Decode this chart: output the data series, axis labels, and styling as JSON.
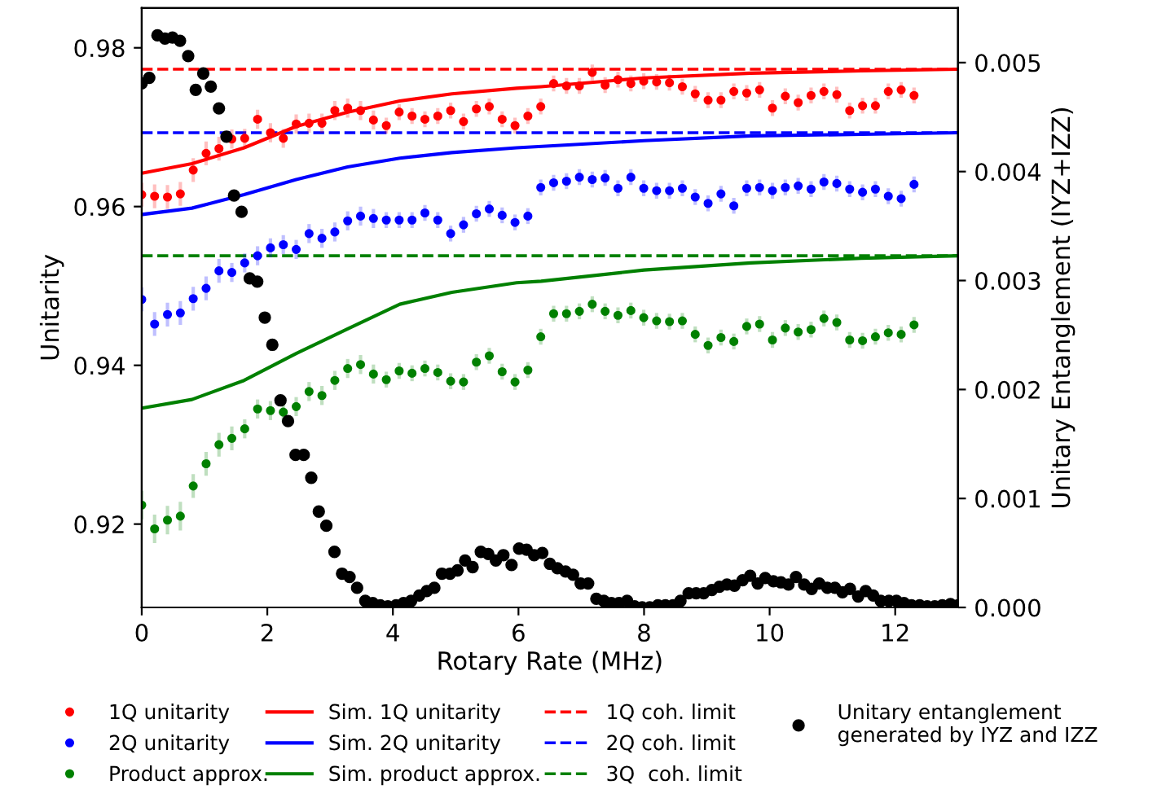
{
  "chart_data": {
    "type": "scatter",
    "xlabel": "Rotary Rate (MHz)",
    "ylabel": "Unitarity",
    "y2label": "Unitary Entanglement (IYZ+IZZ)",
    "xlim": [
      0,
      13
    ],
    "xticks": [
      0,
      2,
      4,
      6,
      8,
      10,
      12
    ],
    "ylim": [
      0.9095,
      0.985
    ],
    "yticks": [
      0.92,
      0.94,
      0.96,
      0.98
    ],
    "y2lim": [
      0,
      0.0055
    ],
    "y2ticks": [
      {
        "value": 0,
        "label": "0.000"
      },
      {
        "value": 0.001,
        "label": "0.001"
      },
      {
        "value": 0.002,
        "label": "0.002"
      },
      {
        "value": 0.003,
        "label": "0.003"
      },
      {
        "value": 0.004,
        "label": "0.004"
      },
      {
        "value": 0.005,
        "label": "0.005"
      }
    ],
    "grid": false,
    "legend": "bottom",
    "marker": "circle",
    "ref_lines": [
      {
        "axis": "y",
        "value": 0.9773,
        "label": "1Q coh. limit",
        "color": "#ff0000",
        "line_style": "dashed"
      },
      {
        "axis": "y",
        "value": 0.9693,
        "label": "2Q coh. limit",
        "color": "#0000ff",
        "line_style": "dashed"
      },
      {
        "axis": "y",
        "value": 0.9538,
        "label": "3Q  coh. limit",
        "color": "#008000",
        "line_style": "dashed"
      }
    ],
    "series": [
      {
        "name": "1Q unitarity",
        "color": "#ff0000",
        "x": [
          0,
          0.205,
          0.41,
          0.615,
          0.82,
          1.025,
          1.23,
          1.435,
          1.64,
          1.845,
          2.05,
          2.255,
          2.46,
          2.665,
          2.87,
          3.075,
          3.28,
          3.485,
          3.69,
          3.895,
          4.1,
          4.305,
          4.51,
          4.715,
          4.92,
          5.125,
          5.33,
          5.535,
          5.74,
          5.945,
          6.15,
          6.355,
          6.56,
          6.765,
          6.97,
          7.175,
          7.38,
          7.585,
          7.79,
          7.995,
          8.2,
          8.405,
          8.61,
          8.815,
          9.02,
          9.225,
          9.43,
          9.635,
          9.84,
          10.045,
          10.25,
          10.455,
          10.66,
          10.865,
          11.07,
          11.275,
          11.48,
          11.685,
          11.89,
          12.095,
          12.3
        ],
        "values": [
          0.9615,
          0.9613,
          0.9612,
          0.9616,
          0.9646,
          0.9667,
          0.9673,
          0.9685,
          0.9686,
          0.971,
          0.9693,
          0.9686,
          0.9704,
          0.9705,
          0.9705,
          0.9721,
          0.9724,
          0.9721,
          0.9709,
          0.9702,
          0.9719,
          0.9714,
          0.971,
          0.9714,
          0.9721,
          0.9707,
          0.9723,
          0.9726,
          0.971,
          0.9702,
          0.9714,
          0.9726,
          0.9755,
          0.9752,
          0.9752,
          0.9769,
          0.9753,
          0.976,
          0.9755,
          0.9758,
          0.9757,
          0.9756,
          0.9751,
          0.9742,
          0.9734,
          0.9734,
          0.9745,
          0.9743,
          0.9747,
          0.9724,
          0.9739,
          0.9731,
          0.974,
          0.9745,
          0.9741,
          0.9721,
          0.9727,
          0.9727,
          0.9745,
          0.9747,
          0.974
        ],
        "errors": [
          0.0015,
          0.0015,
          0.0015,
          0.0015,
          0.0015,
          0.0015,
          0.0015,
          0.0012,
          0.0012,
          0.0012,
          0.0012,
          0.0012,
          0.0012,
          0.0012,
          0.0012,
          0.0012,
          0.0012,
          0.0012,
          0.0012,
          0.001,
          0.001,
          0.001,
          0.001,
          0.001,
          0.001,
          0.001,
          0.001,
          0.001,
          0.001,
          0.001,
          0.001,
          0.001,
          0.001,
          0.001,
          0.001,
          0.001,
          0.001,
          0.001,
          0.001,
          0.001,
          0.001,
          0.001,
          0.001,
          0.001,
          0.001,
          0.001,
          0.001,
          0.001,
          0.001,
          0.001,
          0.001,
          0.001,
          0.001,
          0.001,
          0.001,
          0.001,
          0.001,
          0.001,
          0.001,
          0.001,
          0.001
        ]
      },
      {
        "name": "2Q unitarity",
        "color": "#0000ff",
        "x": [
          0,
          0.205,
          0.41,
          0.615,
          0.82,
          1.025,
          1.23,
          1.435,
          1.64,
          1.845,
          2.05,
          2.255,
          2.46,
          2.665,
          2.87,
          3.075,
          3.28,
          3.485,
          3.69,
          3.895,
          4.1,
          4.305,
          4.51,
          4.715,
          4.92,
          5.125,
          5.33,
          5.535,
          5.74,
          5.945,
          6.15,
          6.355,
          6.56,
          6.765,
          6.97,
          7.175,
          7.38,
          7.585,
          7.79,
          7.995,
          8.2,
          8.405,
          8.61,
          8.815,
          9.02,
          9.225,
          9.43,
          9.635,
          9.84,
          10.045,
          10.25,
          10.455,
          10.66,
          10.865,
          11.07,
          11.275,
          11.48,
          11.685,
          11.89,
          12.095,
          12.3
        ],
        "values": [
          0.9483,
          0.9452,
          0.9464,
          0.9466,
          0.9484,
          0.9497,
          0.9519,
          0.9517,
          0.9529,
          0.9538,
          0.9548,
          0.9552,
          0.9546,
          0.9566,
          0.956,
          0.9568,
          0.9582,
          0.9588,
          0.9585,
          0.9583,
          0.9583,
          0.9583,
          0.9592,
          0.9583,
          0.9566,
          0.9577,
          0.9591,
          0.9597,
          0.9589,
          0.958,
          0.9588,
          0.9624,
          0.963,
          0.9632,
          0.9637,
          0.9634,
          0.9636,
          0.9623,
          0.9637,
          0.9623,
          0.962,
          0.962,
          0.9623,
          0.9612,
          0.9604,
          0.9616,
          0.9601,
          0.9623,
          0.9624,
          0.962,
          0.9624,
          0.9626,
          0.9622,
          0.9631,
          0.9629,
          0.9622,
          0.9618,
          0.9622,
          0.9613,
          0.961,
          0.9628
        ],
        "errors": [
          0.0015,
          0.0015,
          0.0015,
          0.0015,
          0.0015,
          0.0015,
          0.0015,
          0.0012,
          0.0012,
          0.0012,
          0.0012,
          0.0012,
          0.0012,
          0.0012,
          0.0012,
          0.0012,
          0.0012,
          0.0012,
          0.0012,
          0.001,
          0.001,
          0.001,
          0.001,
          0.001,
          0.001,
          0.001,
          0.001,
          0.001,
          0.001,
          0.001,
          0.001,
          0.001,
          0.001,
          0.001,
          0.001,
          0.001,
          0.001,
          0.001,
          0.001,
          0.001,
          0.001,
          0.001,
          0.001,
          0.001,
          0.001,
          0.001,
          0.001,
          0.001,
          0.001,
          0.001,
          0.001,
          0.001,
          0.001,
          0.001,
          0.001,
          0.001,
          0.001,
          0.001,
          0.001,
          0.001,
          0.001
        ]
      },
      {
        "name": "Product approx.",
        "color": "#008000",
        "x": [
          0,
          0.205,
          0.41,
          0.615,
          0.82,
          1.025,
          1.23,
          1.435,
          1.64,
          1.845,
          2.05,
          2.255,
          2.46,
          2.665,
          2.87,
          3.075,
          3.28,
          3.485,
          3.69,
          3.895,
          4.1,
          4.305,
          4.51,
          4.715,
          4.92,
          5.125,
          5.33,
          5.535,
          5.74,
          5.945,
          6.15,
          6.355,
          6.56,
          6.765,
          6.97,
          7.175,
          7.38,
          7.585,
          7.79,
          7.995,
          8.2,
          8.405,
          8.61,
          8.815,
          9.02,
          9.225,
          9.43,
          9.635,
          9.84,
          10.045,
          10.25,
          10.455,
          10.66,
          10.865,
          11.07,
          11.275,
          11.48,
          11.685,
          11.89,
          12.095,
          12.3
        ],
        "values": [
          0.9224,
          0.9194,
          0.9205,
          0.921,
          0.9248,
          0.9276,
          0.93,
          0.9308,
          0.932,
          0.9345,
          0.9343,
          0.9341,
          0.9348,
          0.9367,
          0.9362,
          0.9381,
          0.9396,
          0.9401,
          0.9389,
          0.9382,
          0.9393,
          0.939,
          0.9396,
          0.9391,
          0.938,
          0.9379,
          0.9404,
          0.9412,
          0.9392,
          0.9379,
          0.9394,
          0.9436,
          0.9465,
          0.9465,
          0.9468,
          0.9477,
          0.9468,
          0.9463,
          0.9469,
          0.946,
          0.9456,
          0.9455,
          0.9456,
          0.9439,
          0.9425,
          0.9435,
          0.943,
          0.9449,
          0.9452,
          0.9432,
          0.9447,
          0.9442,
          0.9445,
          0.9459,
          0.9454,
          0.9432,
          0.9431,
          0.9436,
          0.9441,
          0.9439,
          0.9451
        ],
        "errors": [
          0.0018,
          0.0018,
          0.0018,
          0.0018,
          0.0015,
          0.0015,
          0.0015,
          0.0015,
          0.0012,
          0.0012,
          0.0012,
          0.0012,
          0.0012,
          0.0012,
          0.0012,
          0.0012,
          0.0012,
          0.0012,
          0.0012,
          0.001,
          0.001,
          0.001,
          0.001,
          0.001,
          0.001,
          0.001,
          0.001,
          0.001,
          0.001,
          0.001,
          0.001,
          0.001,
          0.001,
          0.001,
          0.001,
          0.001,
          0.001,
          0.001,
          0.001,
          0.001,
          0.001,
          0.001,
          0.001,
          0.001,
          0.001,
          0.001,
          0.001,
          0.001,
          0.001,
          0.001,
          0.001,
          0.001,
          0.001,
          0.001,
          0.001,
          0.001,
          0.001,
          0.001,
          0.001,
          0.001,
          0.001
        ]
      },
      {
        "name": "Sim. 1Q unitarity",
        "type": "line",
        "marker": "none",
        "line_style": "solid",
        "color": "#ff0000",
        "x": [
          0,
          0.8,
          1.63,
          2.46,
          3.28,
          4.11,
          4.94,
          5.97,
          6.36,
          8.0,
          9.7,
          11.46,
          13.0
        ],
        "values": [
          0.9642,
          0.9654,
          0.9674,
          0.9701,
          0.9719,
          0.9733,
          0.9742,
          0.9749,
          0.9751,
          0.9762,
          0.9768,
          0.9771,
          0.9773
        ]
      },
      {
        "name": "Sim. 2Q unitarity",
        "type": "line",
        "marker": "none",
        "line_style": "solid",
        "color": "#0000ff",
        "x": [
          0,
          0.8,
          1.63,
          2.46,
          3.28,
          4.11,
          4.94,
          5.97,
          8.0,
          9.7,
          11.46,
          13.0
        ],
        "values": [
          0.959,
          0.9598,
          0.9615,
          0.9634,
          0.965,
          0.9661,
          0.9668,
          0.9674,
          0.9683,
          0.9689,
          0.9691,
          0.9693
        ]
      },
      {
        "name": "Sim. product approx.",
        "type": "line",
        "marker": "none",
        "line_style": "solid",
        "color": "#008000",
        "x": [
          0,
          0.8,
          1.63,
          2.46,
          3.28,
          4.11,
          4.94,
          5.97,
          6.36,
          8.0,
          9.7,
          11.46,
          13.0
        ],
        "values": [
          0.9346,
          0.9357,
          0.9381,
          0.9415,
          0.9446,
          0.9477,
          0.9492,
          0.9504,
          0.9506,
          0.952,
          0.9529,
          0.9535,
          0.9538
        ]
      },
      {
        "name": "Unitary entanglement\ngenerated by IYZ and IZZ",
        "axis": "y2",
        "color": "#000000",
        "x": [
          0,
          0.12,
          0.25,
          0.37,
          0.49,
          0.61,
          0.74,
          0.86,
          0.98,
          1.1,
          1.23,
          1.35,
          1.47,
          1.59,
          1.72,
          1.84,
          1.96,
          2.08,
          2.21,
          2.33,
          2.45,
          2.58,
          2.7,
          2.82,
          2.94,
          3.07,
          3.19,
          3.31,
          3.43,
          3.56,
          3.68,
          3.8,
          3.92,
          4.05,
          4.17,
          4.29,
          4.42,
          4.54,
          4.66,
          4.78,
          4.91,
          5.03,
          5.15,
          5.27,
          5.4,
          5.52,
          5.64,
          5.76,
          5.89,
          6.01,
          6.13,
          6.25,
          6.38,
          6.5,
          6.62,
          6.75,
          6.87,
          6.99,
          7.11,
          7.24,
          7.36,
          7.48,
          7.6,
          7.73,
          7.85,
          7.97,
          8.09,
          8.22,
          8.34,
          8.46,
          8.58,
          8.71,
          8.83,
          8.95,
          9.08,
          9.2,
          9.32,
          9.44,
          9.57,
          9.69,
          9.81,
          9.93,
          10.06,
          10.18,
          10.3,
          10.42,
          10.55,
          10.67,
          10.79,
          10.92,
          11.04,
          11.16,
          11.28,
          11.41,
          11.53,
          11.65,
          11.77,
          11.9,
          12.02,
          12.14,
          12.26,
          12.39,
          12.51,
          12.63,
          12.75,
          12.88,
          13.0
        ],
        "values": [
          0.00481,
          0.00486,
          0.00525,
          0.00522,
          0.00523,
          0.0052,
          0.00506,
          0.00475,
          0.0049,
          0.00478,
          0.00458,
          0.00432,
          0.00378,
          0.00363,
          0.00302,
          0.00299,
          0.00266,
          0.00241,
          0.0019,
          0.00171,
          0.0014,
          0.0014,
          0.00119,
          0.00088,
          0.00075,
          0.00051,
          0.00031,
          0.00028,
          0.00018,
          6e-05,
          4e-05,
          2e-05,
          1e-05,
          2e-05,
          4e-05,
          6e-05,
          0.00011,
          0.00015,
          0.00018,
          0.00031,
          0.00031,
          0.00034,
          0.00043,
          0.00037,
          0.00051,
          0.00049,
          0.00043,
          0.00048,
          0.00039,
          0.00054,
          0.00053,
          0.00048,
          0.0005,
          0.0004,
          0.00036,
          0.00033,
          0.0003,
          0.00022,
          0.00022,
          8e-05,
          6e-05,
          4e-05,
          4e-05,
          6e-05,
          1e-05,
          0.0,
          0.0,
          2e-05,
          2e-05,
          2e-05,
          6e-05,
          0.00013,
          0.00013,
          0.00013,
          0.00016,
          0.00019,
          0.00021,
          0.0002,
          0.00025,
          0.00029,
          0.00022,
          0.00027,
          0.00024,
          0.00023,
          0.00021,
          0.00028,
          0.00021,
          0.00017,
          0.00022,
          0.00018,
          0.00018,
          0.00014,
          0.00017,
          0.0001,
          0.00015,
          0.00011,
          6e-05,
          6e-05,
          6e-05,
          4e-05,
          2e-05,
          2e-05,
          1e-05,
          1e-05,
          2e-05,
          3e-05,
          2e-05
        ]
      }
    ]
  }
}
